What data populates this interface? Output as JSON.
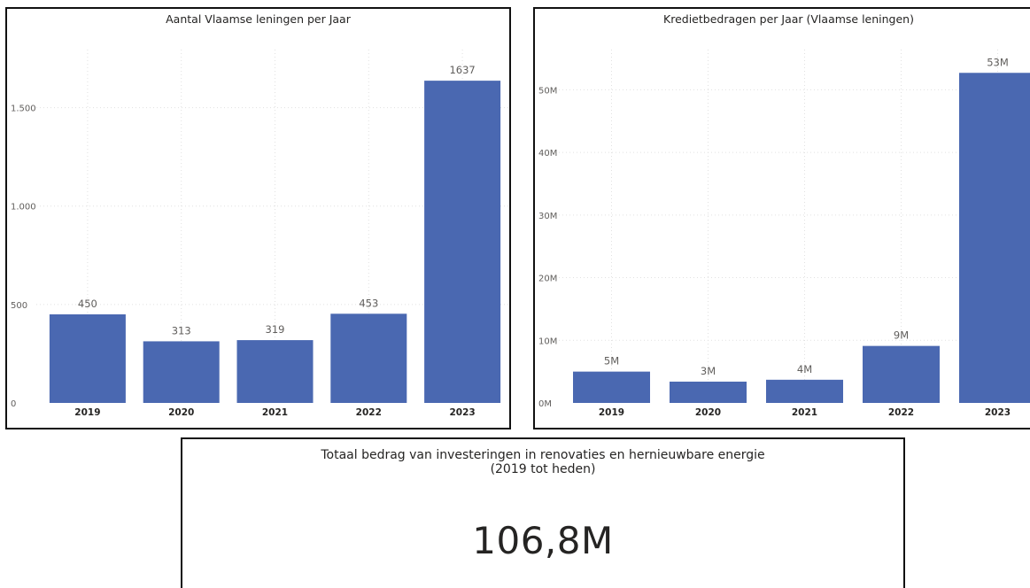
{
  "colors": {
    "bar": "#4a68b1",
    "grid": "#e1e1e1",
    "text": "#252423",
    "axis_text": "#605e5c",
    "border": "#111111"
  },
  "chart_data": [
    {
      "type": "bar",
      "title": "Aantal Vlaamse leningen per Jaar",
      "categories": [
        "2019",
        "2020",
        "2021",
        "2022",
        "2023"
      ],
      "values": [
        450,
        313,
        319,
        453,
        1637
      ],
      "data_labels": [
        "450",
        "313",
        "319",
        "453",
        "1637"
      ],
      "yticks": [
        0,
        500,
        1000,
        1500
      ],
      "ytick_labels": [
        "0",
        "500",
        "1.000",
        "1.500"
      ],
      "ylim": [
        0,
        1750
      ],
      "xlabel": "",
      "ylabel": "",
      "grid": true,
      "legend": "none"
    },
    {
      "type": "bar",
      "title": "Kredietbedragen per Jaar (Vlaamse leningen)",
      "categories": [
        "2019",
        "2020",
        "2021",
        "2022",
        "2023"
      ],
      "values": [
        5000000,
        3400000,
        3700000,
        9100000,
        52700000
      ],
      "data_labels": [
        "5M",
        "3M",
        "4M",
        "9M",
        "53M"
      ],
      "yticks": [
        0,
        10000000,
        20000000,
        30000000,
        40000000,
        50000000
      ],
      "ytick_labels": [
        "0M",
        "10M",
        "20M",
        "30M",
        "40M",
        "50M"
      ],
      "ylim": [
        0,
        55000000
      ],
      "xlabel": "",
      "ylabel": "",
      "grid": true,
      "legend": "none"
    }
  ],
  "kpi": {
    "title_line1": "Totaal bedrag van investeringen in renovaties en hernieuwbare energie",
    "title_line2": "(2019 tot heden)",
    "value": "106,8M"
  }
}
